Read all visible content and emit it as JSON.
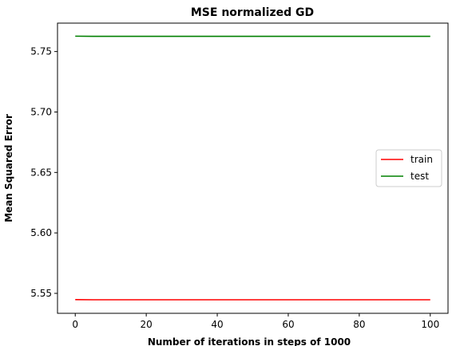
{
  "chart_data": {
    "type": "line",
    "title": "MSE normalized GD",
    "xlabel": "Number of iterations in steps of 1000",
    "ylabel": "Mean Squared Error",
    "xlim": [
      -5,
      105
    ],
    "ylim": [
      5.5335,
      5.7735
    ],
    "x_ticks": [
      0,
      20,
      40,
      60,
      80,
      100
    ],
    "y_ticks": [
      5.55,
      5.6,
      5.65,
      5.7,
      5.75
    ],
    "y_tick_labels": [
      "5.55",
      "5.60",
      "5.65",
      "5.70",
      "5.75"
    ],
    "x": [
      0,
      5,
      10,
      20,
      30,
      40,
      50,
      60,
      70,
      80,
      90,
      100
    ],
    "series": [
      {
        "name": "train",
        "color": "#ff0000",
        "values": [
          5.5448,
          5.5447,
          5.5447,
          5.5447,
          5.5447,
          5.5447,
          5.5447,
          5.5447,
          5.5447,
          5.5447,
          5.5447,
          5.5447
        ]
      },
      {
        "name": "test",
        "color": "#008000",
        "values": [
          5.7627,
          5.7626,
          5.7626,
          5.7626,
          5.7626,
          5.7626,
          5.7626,
          5.7626,
          5.7626,
          5.7626,
          5.7626,
          5.7626
        ]
      }
    ],
    "legend": {
      "placement": "center-right",
      "entries": [
        "train",
        "test"
      ]
    },
    "grid": false
  }
}
